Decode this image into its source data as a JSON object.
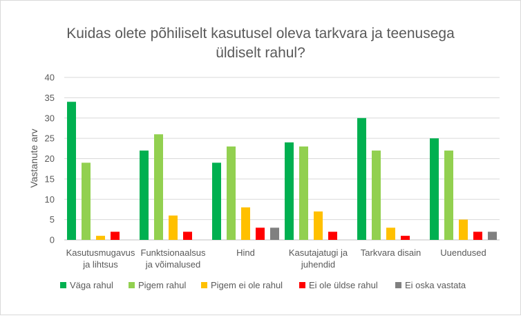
{
  "chart_data": {
    "type": "bar",
    "title_lines": [
      "Kuidas olete põhiliselt kasutusel oleva tarkvara ja teenusega",
      "üldiselt rahul?"
    ],
    "xlabel": "",
    "ylabel": "Vastanute arv",
    "ylim": [
      0,
      40
    ],
    "yticks": [
      0,
      5,
      10,
      15,
      20,
      25,
      30,
      35,
      40
    ],
    "grid": true,
    "legend_position": "bottom",
    "categories": [
      [
        "Kasutusmugavus",
        "ja lihtsus"
      ],
      [
        "Funktsionaalsus",
        "ja võimalused"
      ],
      [
        "Hind"
      ],
      [
        "Kasutajatugi ja",
        "juhendid"
      ],
      [
        "Tarkvara disain"
      ],
      [
        "Uuendused"
      ]
    ],
    "series": [
      {
        "name": "Väga rahul",
        "color": "#00b050",
        "values": [
          34,
          22,
          19,
          24,
          30,
          25
        ]
      },
      {
        "name": "Pigem rahul",
        "color": "#92d050",
        "values": [
          19,
          26,
          23,
          23,
          22,
          22
        ]
      },
      {
        "name": "Pigem ei ole rahul",
        "color": "#ffc000",
        "values": [
          1,
          6,
          8,
          7,
          3,
          5
        ]
      },
      {
        "name": "Ei ole üldse rahul",
        "color": "#ff0000",
        "values": [
          2,
          2,
          3,
          2,
          1,
          2
        ]
      },
      {
        "name": "Ei oska vastata",
        "color": "#808080",
        "values": [
          0,
          0,
          3,
          0,
          0,
          2
        ]
      }
    ]
  }
}
